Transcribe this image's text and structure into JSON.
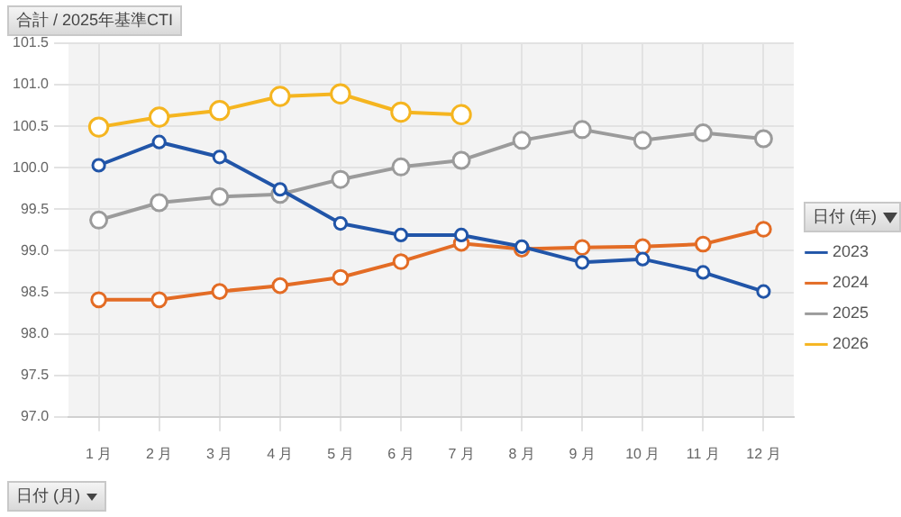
{
  "chart_data": {
    "type": "line",
    "title": "合計 / 2025年基準CTI",
    "xlabel": "日付 (月)",
    "legend_title": "日付 (年)",
    "categories": [
      "1 月",
      "2 月",
      "3 月",
      "4 月",
      "5 月",
      "6 月",
      "7 月",
      "8 月",
      "9 月",
      "10 月",
      "11 月",
      "12 月"
    ],
    "series": [
      {
        "name": "2023",
        "color": "#2155a8",
        "values": [
          100.03,
          100.31,
          100.13,
          99.74,
          99.33,
          99.19,
          99.19,
          99.05,
          98.86,
          98.9,
          98.74,
          98.51
        ]
      },
      {
        "name": "2024",
        "color": "#e36c25",
        "values": [
          98.41,
          98.41,
          98.51,
          98.58,
          98.68,
          98.87,
          99.09,
          99.02,
          99.04,
          99.05,
          99.08,
          99.26
        ]
      },
      {
        "name": "2025",
        "color": "#9b9b9b",
        "values": [
          99.37,
          99.58,
          99.65,
          99.68,
          99.86,
          100.01,
          100.09,
          100.33,
          100.46,
          100.33,
          100.42,
          100.35
        ]
      },
      {
        "name": "2026",
        "color": "#f5b520",
        "values": [
          100.49,
          100.61,
          100.69,
          100.86,
          100.89,
          100.67,
          100.64,
          null,
          null,
          null,
          null,
          null
        ]
      }
    ],
    "ylim": [
      97.0,
      101.5
    ],
    "yticks": [
      {
        "value": 97,
        "label": "97.0"
      },
      {
        "value": 97.5,
        "label": "97.5"
      },
      {
        "value": 98,
        "label": "98.0"
      },
      {
        "value": 98.5,
        "label": "98.5"
      },
      {
        "value": 99,
        "label": "99.0"
      },
      {
        "value": 99.5,
        "label": "99.5"
      },
      {
        "value": 100,
        "label": "100.0"
      },
      {
        "value": 100.5,
        "label": "100.5"
      },
      {
        "value": 101,
        "label": "101.0"
      },
      {
        "value": 101.5,
        "label": "101.5"
      }
    ],
    "grid": true,
    "legend": "right",
    "marker": "circle",
    "line_style": "solid"
  }
}
